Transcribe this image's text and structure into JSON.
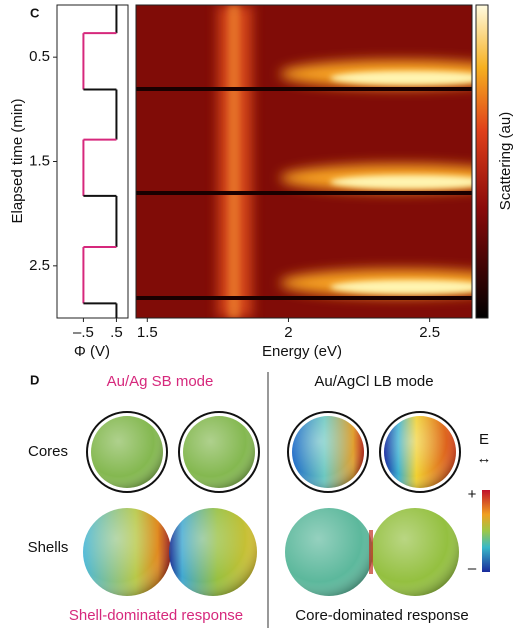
{
  "panel_c": {
    "label": "C",
    "y_label": "Elapsed time (min)",
    "ylim": [
      0,
      3
    ],
    "yticks": [
      0.5,
      1.5,
      2.5
    ],
    "potential_plot": {
      "x_label": "Φ (V)",
      "xlim": [
        -1.3,
        0.85
      ],
      "xticks": [
        {
          "value": -0.5,
          "label": "–.5"
        },
        {
          "value": 0.5,
          "label": ".5"
        }
      ],
      "segments": [
        {
          "start": 0,
          "end": 0.27,
          "potential": 0.5,
          "color": "#111111"
        },
        {
          "start": 0.27,
          "end": 0.81,
          "potential": -0.5,
          "color": "#d6287c"
        },
        {
          "start": 0.81,
          "end": 1.29,
          "potential": 0.5,
          "color": "#111111"
        },
        {
          "start": 1.29,
          "end": 1.83,
          "potential": -0.5,
          "color": "#d6287c"
        },
        {
          "start": 1.83,
          "end": 2.32,
          "potential": 0.5,
          "color": "#111111"
        },
        {
          "start": 2.32,
          "end": 2.86,
          "potential": -0.5,
          "color": "#d6287c"
        },
        {
          "start": 2.86,
          "end": 3,
          "potential": 0.5,
          "color": "#111111"
        }
      ]
    },
    "heatmap": {
      "x_label": "Energy (eV)",
      "xlim": [
        1.46,
        2.65
      ],
      "xticks": [
        1.5,
        2,
        2.5
      ]
    },
    "colorbar_label": "Scattering (au)"
  },
  "panel_d": {
    "label": "D",
    "left_header": "Au/Ag SB mode",
    "right_header": "Au/AgCl LB mode",
    "row_labels": [
      "Cores",
      "Shells"
    ],
    "field_label": "E",
    "field_arrow": "↔",
    "scale_plus": "+",
    "scale_minus": "–",
    "left_footer": "Shell-dominated response",
    "right_footer": "Core-dominated response"
  }
}
